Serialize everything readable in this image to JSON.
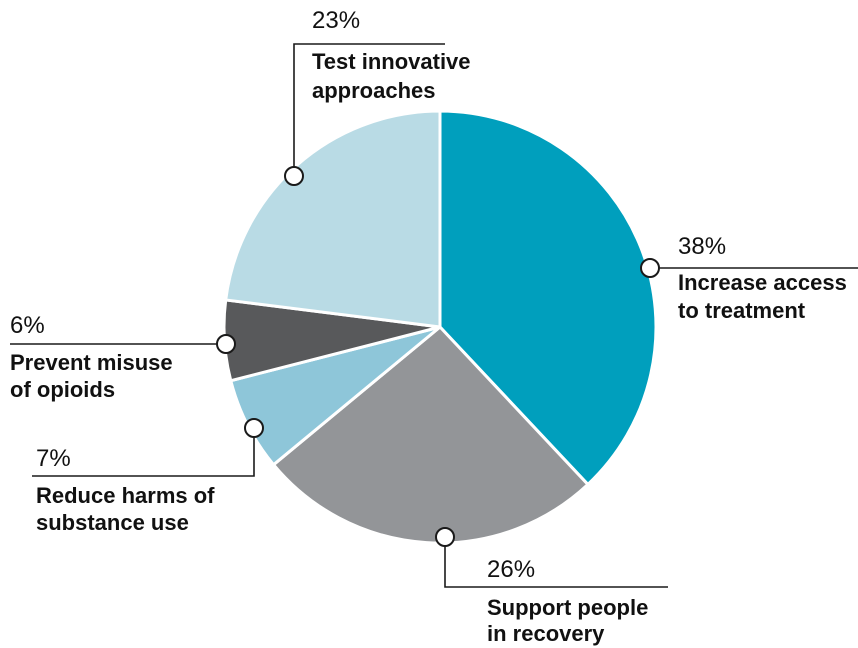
{
  "chart_data": {
    "type": "pie",
    "start_angle_deg": 0,
    "direction": "clockwise",
    "slices": [
      {
        "value": 38,
        "pct_label": "38%",
        "label_lines": [
          "Increase access",
          "to treatment"
        ],
        "color": "#009fbd"
      },
      {
        "value": 26,
        "pct_label": "26%",
        "label_lines": [
          "Support people",
          "in recovery"
        ],
        "color": "#939598"
      },
      {
        "value": 7,
        "pct_label": "7%",
        "label_lines": [
          "Reduce harms of",
          "substance use"
        ],
        "color": "#8ec6d9"
      },
      {
        "value": 6,
        "pct_label": "6%",
        "label_lines": [
          "Prevent misuse",
          "of opioids"
        ],
        "color": "#58595b"
      },
      {
        "value": 23,
        "pct_label": "23%",
        "label_lines": [
          "Test innovative",
          "approaches"
        ],
        "color": "#b9dbe5"
      }
    ]
  }
}
